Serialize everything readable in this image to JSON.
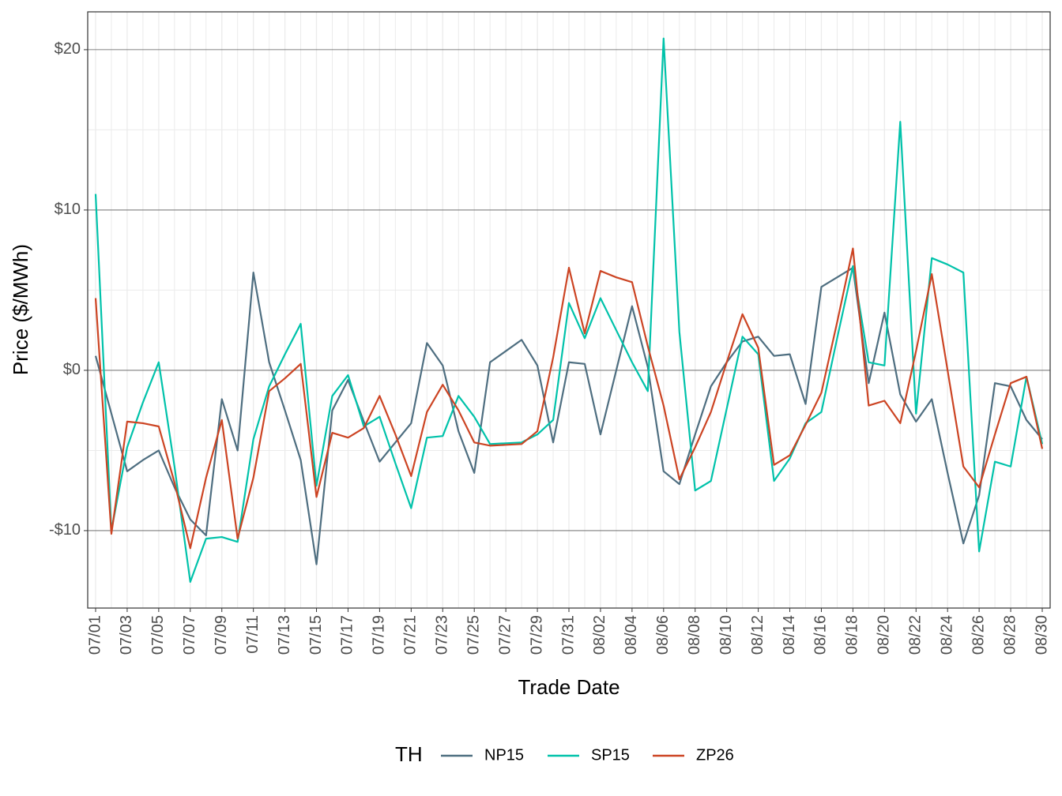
{
  "chart_data": {
    "type": "line",
    "x_label": "Trade Date",
    "y_label": "Price ($/MWh)",
    "legend_title": "TH",
    "legend": "bottom",
    "grid": true,
    "categories": [
      "07/01",
      null,
      "07/03",
      null,
      "07/05",
      null,
      "07/07",
      null,
      "07/09",
      null,
      "07/11",
      null,
      "07/13",
      null,
      "07/15",
      null,
      "07/17",
      null,
      "07/19",
      null,
      "07/21",
      null,
      "07/23",
      null,
      "07/25",
      null,
      "07/27",
      null,
      "07/29",
      null,
      "07/31",
      null,
      "08/02",
      null,
      "08/04",
      null,
      "08/06",
      null,
      "08/08",
      null,
      "08/10",
      null,
      "08/12",
      null,
      "08/14",
      null,
      "08/16",
      null,
      "08/18",
      null,
      "08/20",
      null,
      "08/22",
      null,
      "08/24",
      null,
      "08/26",
      null,
      "08/28",
      null,
      "08/30"
    ],
    "ylim": [
      -14.83,
      22.36
    ],
    "yticks": [
      {
        "value": -10,
        "label": "-$10"
      },
      {
        "value": 0,
        "label": "$0"
      },
      {
        "value": 10,
        "label": "$10"
      },
      {
        "value": 20,
        "label": "$20"
      }
    ],
    "yminorticks": [
      -5,
      5,
      15
    ],
    "series": [
      {
        "name": "NP15",
        "color": "#4e6e80",
        "values": [
          0.9,
          -2.7,
          -6.3,
          -5.6,
          -5.0,
          -7.3,
          -9.3,
          -10.3,
          -1.8,
          -5.0,
          6.1,
          0.5,
          -2.5,
          -5.6,
          -12.1,
          -2.5,
          -0.6,
          -3.2,
          -5.7,
          -4.5,
          -3.3,
          1.7,
          0.3,
          -3.8,
          -6.4,
          0.5,
          1.2,
          1.9,
          0.3,
          -4.5,
          0.5,
          0.4,
          -4.0,
          0.0,
          4.0,
          0.2,
          -6.3,
          -7.1,
          -4.0,
          -1.0,
          0.5,
          1.8,
          2.1,
          0.9,
          1.0,
          -2.1,
          5.2,
          5.8,
          6.4,
          -0.8,
          3.6,
          -1.5,
          -3.2,
          -1.8,
          -6.4,
          -10.8,
          -7.8,
          -0.8,
          -1.0,
          -3.1,
          -4.3
        ]
      },
      {
        "name": "SP15",
        "color": "#00c2aa",
        "values": [
          11.0,
          -10.0,
          -4.8,
          -2.0,
          0.5,
          -6.0,
          -13.2,
          -10.5,
          -10.4,
          -10.7,
          -4.3,
          -1.0,
          1.0,
          2.9,
          -7.2,
          -1.6,
          -0.3,
          -3.5,
          -2.9,
          -5.8,
          -8.6,
          -4.2,
          -4.1,
          -1.6,
          -2.9,
          -4.6,
          -4.55,
          -4.5,
          -4.0,
          -3.1,
          4.2,
          2.0,
          4.5,
          2.5,
          0.5,
          -1.3,
          20.7,
          2.4,
          -7.5,
          -6.9,
          -2.4,
          2.1,
          1.0,
          -6.9,
          -5.5,
          -3.3,
          -2.6,
          2.0,
          6.5,
          0.5,
          0.3,
          15.5,
          -2.7,
          7.0,
          6.6,
          6.1,
          -11.3,
          -5.7,
          -6.0,
          -0.4,
          -4.6
        ]
      },
      {
        "name": "ZP26",
        "color": "#cc4423",
        "values": [
          4.5,
          -10.2,
          -3.2,
          -3.3,
          -3.5,
          -7.0,
          -11.1,
          -6.7,
          -3.1,
          -10.5,
          -6.7,
          -1.3,
          -0.5,
          0.4,
          -7.9,
          -3.9,
          -4.2,
          -3.6,
          -1.6,
          -4.0,
          -6.6,
          -2.6,
          -0.9,
          -2.5,
          -4.5,
          -4.7,
          -4.65,
          -4.6,
          -3.8,
          0.8,
          6.4,
          2.3,
          6.2,
          5.8,
          5.5,
          1.5,
          -2.2,
          -6.8,
          -4.8,
          -2.6,
          0.5,
          3.5,
          1.4,
          -5.9,
          -5.3,
          -3.4,
          -1.4,
          3.0,
          7.6,
          -2.2,
          -1.9,
          -3.3,
          1.2,
          6.0,
          0.0,
          -6.0,
          -7.3,
          -4.0,
          -0.8,
          -0.4,
          -4.9
        ]
      }
    ]
  }
}
